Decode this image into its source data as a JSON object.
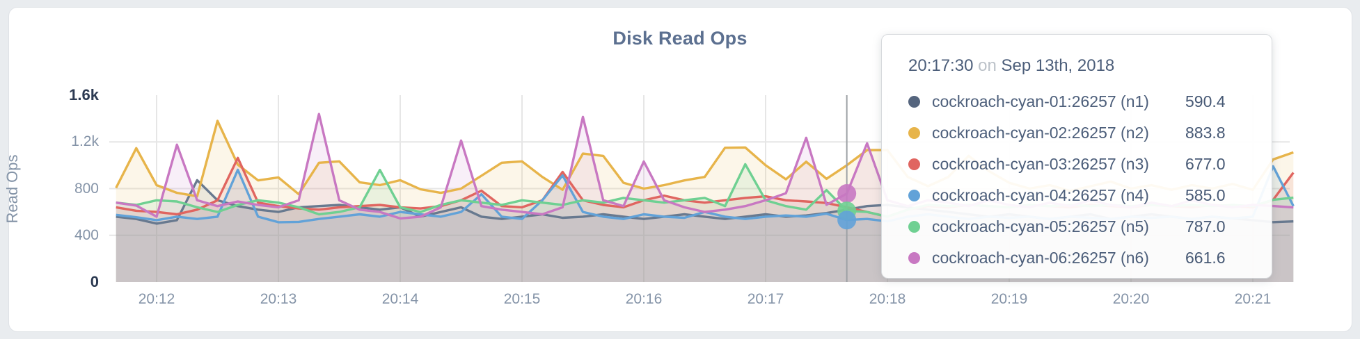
{
  "page": {
    "background": "#e9ecef"
  },
  "tooltip": {
    "time": "20:17:30",
    "on_label": "on",
    "date": "Sep 13th, 2018",
    "rows": [
      {
        "name": "cockroach-cyan-01:26257 (n1)",
        "value": "590.4",
        "color": "#55657e"
      },
      {
        "name": "cockroach-cyan-02:26257 (n2)",
        "value": "883.8",
        "color": "#e7b44a"
      },
      {
        "name": "cockroach-cyan-03:26257 (n3)",
        "value": "677.0",
        "color": "#e06560"
      },
      {
        "name": "cockroach-cyan-04:26257 (n4)",
        "value": "585.0",
        "color": "#62a2d8"
      },
      {
        "name": "cockroach-cyan-05:26257 (n5)",
        "value": "787.0",
        "color": "#6fd092"
      },
      {
        "name": "cockroach-cyan-06:26257 (n6)",
        "value": "661.6",
        "color": "#c878c2"
      }
    ]
  },
  "chart_data": {
    "type": "line",
    "title": "Disk Read Ops",
    "ylabel": "Read Ops",
    "ylim": [
      0,
      1600
    ],
    "grid": true,
    "x_ticks": [
      "20:12",
      "20:13",
      "20:14",
      "20:15",
      "20:16",
      "20:17",
      "20:18",
      "20:19",
      "20:20",
      "20:21"
    ],
    "y_ticks": [
      {
        "label": "1.6k",
        "value": 1600,
        "strong": true
      },
      {
        "label": "1.2k",
        "value": 1200,
        "strong": false
      },
      {
        "label": "800",
        "value": 800,
        "strong": false
      },
      {
        "label": "400",
        "value": 400,
        "strong": false
      },
      {
        "label": "0",
        "value": 0,
        "strong": true
      }
    ],
    "grid_y_values": [
      400,
      800,
      1200
    ],
    "x_start_seconds": -20,
    "x_step_seconds": 10,
    "time_origin": "20:12:00",
    "hover": {
      "tooltip_time": "20:17:30",
      "tooltip_index": 35,
      "guideline_index": 36,
      "dot_series": [
        "n6",
        "n5",
        "n4"
      ],
      "dot_radius": 13.5
    },
    "series": [
      {
        "id": "n1",
        "name": "cockroach-cyan-01:26257 (n1)",
        "color": "#55657e",
        "line_color": "#68798f",
        "values": [
          560,
          540,
          500,
          530,
          872,
          700,
          650,
          620,
          600,
          640,
          650,
          660,
          640,
          620,
          640,
          560,
          600,
          640,
          560,
          540,
          560,
          580,
          550,
          560,
          580,
          560,
          540,
          560,
          580,
          560,
          540,
          560,
          580,
          560,
          570,
          590.4,
          620,
          650,
          660,
          640,
          620,
          600,
          580,
          560,
          580,
          560,
          540,
          560,
          580,
          540,
          560,
          580,
          560,
          540,
          560,
          545,
          530,
          513,
          519
        ]
      },
      {
        "id": "n2",
        "name": "cockroach-cyan-02:26257 (n2)",
        "color": "#e7b44a",
        "line_color": "#e7b44a",
        "values": [
          806,
          1146,
          830,
          764,
          734,
          1380,
          1005,
          870,
          896,
          752,
          1021,
          1033,
          854,
          830,
          872,
          794,
          764,
          800,
          910,
          1021,
          1033,
          900,
          790,
          1100,
          1080,
          850,
          800,
          830,
          870,
          900,
          1150,
          1152,
          1000,
          880,
          1030,
          883.8,
          1000,
          1130,
          1130,
          900,
          820,
          900,
          1080,
          950,
          850,
          800,
          830,
          780,
          820,
          860,
          800,
          830,
          790,
          830,
          800,
          840,
          790,
          1050,
          1110
        ]
      },
      {
        "id": "n3",
        "name": "cockroach-cyan-03:26257 (n3)",
        "color": "#e06560",
        "line_color": "#e06560",
        "values": [
          640,
          610,
          600,
          580,
          620,
          700,
          1063,
          680,
          650,
          630,
          620,
          640,
          650,
          660,
          640,
          630,
          650,
          700,
          782,
          650,
          640,
          700,
          943,
          700,
          660,
          640,
          700,
          740,
          700,
          680,
          700,
          720,
          734,
          700,
          690,
          677,
          640,
          600,
          560,
          620,
          650,
          640,
          660,
          650,
          640,
          660,
          650,
          640,
          660,
          650,
          640,
          660,
          650,
          640,
          660,
          650,
          640,
          704,
          937
        ]
      },
      {
        "id": "n4",
        "name": "cockroach-cyan-04:26257 (n4)",
        "color": "#62a2d8",
        "line_color": "#62a2d8",
        "values": [
          575,
          555,
          530,
          560,
          540,
          560,
          961,
          560,
          512,
          515,
          540,
          560,
          580,
          560,
          600,
          580,
          560,
          600,
          752,
          560,
          540,
          700,
          913,
          600,
          560,
          540,
          580,
          560,
          550,
          600,
          560,
          540,
          560,
          570,
          560,
          585,
          531,
          540,
          520,
          560,
          580,
          560,
          540,
          560,
          550,
          560,
          540,
          560,
          550,
          540,
          560,
          550,
          560,
          540,
          560,
          545,
          560,
          991,
          651
        ]
      },
      {
        "id": "n5",
        "name": "cockroach-cyan-05:26257 (n5)",
        "color": "#6fd092",
        "line_color": "#6fd092",
        "values": [
          680,
          660,
          700,
          690,
          640,
          600,
          660,
          700,
          680,
          640,
          580,
          600,
          640,
          960,
          640,
          600,
          660,
          700,
          680,
          660,
          700,
          680,
          660,
          700,
          680,
          720,
          700,
          680,
          700,
          720,
          650,
          1009,
          700,
          650,
          620,
          787,
          609,
          600,
          560,
          620,
          660,
          650,
          660,
          650,
          640,
          660,
          650,
          660,
          650,
          660,
          650,
          660,
          650,
          660,
          650,
          660,
          650,
          704,
          722
        ]
      },
      {
        "id": "n6",
        "name": "cockroach-cyan-06:26257 (n6)",
        "color": "#c878c2",
        "line_color": "#c878c2",
        "values": [
          680,
          655,
          560,
          1176,
          700,
          650,
          690,
          660,
          640,
          700,
          1439,
          700,
          620,
          600,
          545,
          560,
          640,
          1211,
          650,
          620,
          600,
          580,
          640,
          1414,
          700,
          650,
          1032,
          700,
          640,
          600,
          620,
          650,
          700,
          760,
          1235,
          661.6,
          758,
          1188,
          700,
          650,
          700,
          680,
          650,
          700,
          660,
          640,
          680,
          650,
          700,
          660,
          640,
          680,
          650,
          700,
          660,
          640,
          660,
          651,
          639
        ]
      }
    ]
  }
}
